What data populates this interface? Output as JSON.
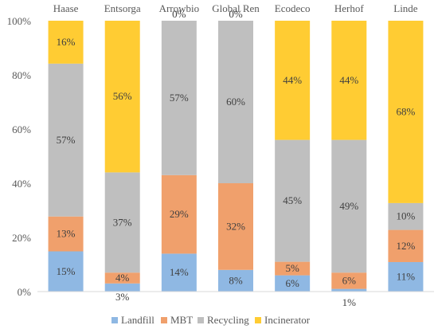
{
  "chart_data": {
    "type": "bar",
    "stacked": true,
    "percent_stacked": true,
    "categories": [
      "Haase",
      "Entsorga",
      "Arrowbio",
      "Global Ren",
      "Ecodeco",
      "Herhof",
      "Linde"
    ],
    "series": [
      {
        "name": "Landfill",
        "color": "#8fb8e3",
        "values": [
          15,
          3,
          14,
          8,
          6,
          1,
          11
        ],
        "labels": [
          "15%",
          "3%",
          "14%",
          "8%",
          "6%",
          "1%",
          "11%"
        ]
      },
      {
        "name": "MBT",
        "color": "#f0a06c",
        "values": [
          13,
          4,
          29,
          32,
          5,
          6,
          12
        ],
        "labels": [
          "13%",
          "4%",
          "29%",
          "32%",
          "5%",
          "6%",
          "12%"
        ]
      },
      {
        "name": "Recycling",
        "color": "#bfbfbf",
        "values": [
          57,
          37,
          57,
          60,
          45,
          49,
          10
        ],
        "labels": [
          "57%",
          "37%",
          "57%",
          "60%",
          "45%",
          "49%",
          "10%"
        ]
      },
      {
        "name": "Incinerator",
        "color": "#ffcc33",
        "values": [
          16,
          56,
          0,
          0,
          44,
          44,
          68
        ],
        "labels": [
          "16%",
          "56%",
          "0%",
          "0%",
          "44%",
          "44%",
          "68%"
        ]
      }
    ],
    "y_ticks": [
      "0%",
      "20%",
      "40%",
      "60%",
      "80%",
      "100%"
    ],
    "ylim": [
      0,
      100
    ],
    "legend_position": "bottom",
    "grid": false
  }
}
